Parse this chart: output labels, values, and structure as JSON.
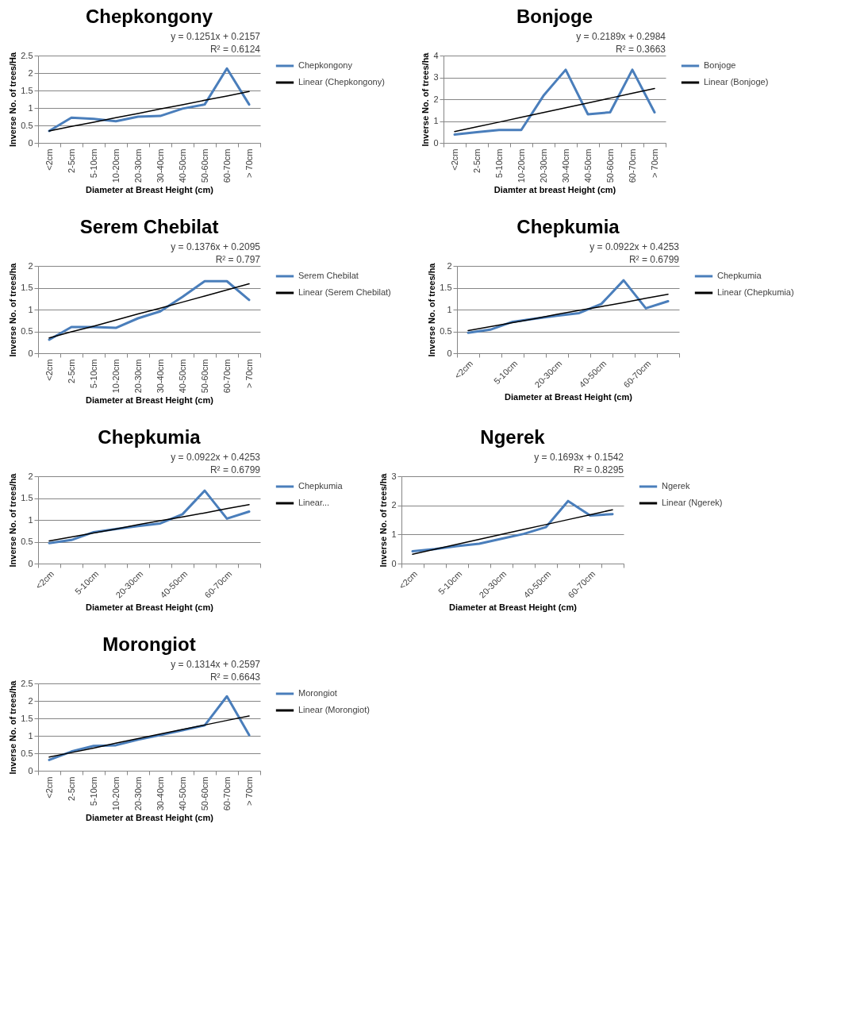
{
  "chart_data": [
    {
      "type": "line",
      "title": "Chepkongony",
      "xlabel": "Diameter at Breast Height (cm)",
      "ylabel": "Inverse No. of trees/Ha",
      "categories": [
        "<2cm",
        "2-5cm",
        "5-10cm",
        "10-20cm",
        "20-30cm",
        "30-40cm",
        "40-50cm",
        "50-60cm",
        "60-70cm",
        "> 70cm"
      ],
      "series": [
        {
          "name": "Chepkongony",
          "color": "#4a7ebb",
          "values": [
            0.34,
            0.72,
            0.69,
            0.62,
            0.75,
            0.77,
            0.98,
            1.1,
            2.13,
            1.1
          ]
        },
        {
          "name": "Linear (Chepkongony)",
          "type": "line",
          "color": "#000000",
          "values": [
            0.34,
            0.47,
            0.59,
            0.72,
            0.84,
            0.97,
            1.09,
            1.22,
            1.34,
            1.47
          ]
        }
      ],
      "ylim": [
        0,
        2.5
      ],
      "yticks": [
        0,
        0.5,
        1,
        1.5,
        2,
        2.5
      ],
      "grid": "y",
      "legend": "right",
      "annotations": [
        "y = 0.1251x + 0.2157",
        "R² = 0.6124"
      ]
    },
    {
      "type": "line",
      "title": "Bonjoge",
      "xlabel": "Diamter at breast Height (cm)",
      "ylabel": "Inverse No. of trees/ha",
      "categories": [
        "<2cm",
        "2-5cm",
        "5-10cm",
        "10-20cm",
        "20-30cm",
        "30-40cm",
        "40-50cm",
        "50-60cm",
        "60-70cm",
        "> 70cm"
      ],
      "series": [
        {
          "name": "Bonjoge",
          "color": "#4a7ebb",
          "values": [
            0.38,
            0.49,
            0.59,
            0.59,
            2.16,
            3.35,
            1.31,
            1.4,
            3.35,
            1.4
          ]
        },
        {
          "name": "Linear (Bonjoge)",
          "type": "line",
          "color": "#000000",
          "values": [
            0.52,
            0.74,
            0.95,
            1.17,
            1.39,
            1.61,
            1.83,
            2.05,
            2.27,
            2.49
          ]
        }
      ],
      "ylim": [
        0,
        4
      ],
      "yticks": [
        0,
        1,
        2,
        3,
        4
      ],
      "grid": "y",
      "legend": "right",
      "annotations": [
        "y = 0.2189x + 0.2984",
        "R² = 0.3663"
      ]
    },
    {
      "type": "line",
      "title": "Serem Chebilat",
      "xlabel": "Diameter at Breast Height (cm)",
      "ylabel": "Inverse No. of trees/ha",
      "categories": [
        "<2cm",
        "2-5cm",
        "5-10cm",
        "10-20cm",
        "20-30cm",
        "30-40cm",
        "40-50cm",
        "50-60cm",
        "60-70cm",
        "> 70cm"
      ],
      "series": [
        {
          "name": "Serem Chebilat",
          "color": "#4a7ebb",
          "values": [
            0.31,
            0.6,
            0.6,
            0.58,
            0.8,
            0.96,
            1.29,
            1.65,
            1.65,
            1.22
          ]
        },
        {
          "name": "Linear (Serem Chebilat)",
          "type": "line",
          "color": "#000000",
          "values": [
            0.35,
            0.49,
            0.62,
            0.76,
            0.9,
            1.03,
            1.17,
            1.31,
            1.45,
            1.59
          ]
        }
      ],
      "ylim": [
        0,
        2
      ],
      "yticks": [
        0,
        0.5,
        1,
        1.5,
        2
      ],
      "grid": "y",
      "legend": "right",
      "annotations": [
        "y = 0.1376x + 0.2095",
        "R² = 0.797"
      ]
    },
    {
      "type": "line",
      "title": "Chepkumia",
      "xlabel": "Diameter at Breast Height (cm)",
      "ylabel": "Inverse No. of trees/ha",
      "categories": [
        "<2cm",
        null,
        "5-10cm",
        null,
        "20-30cm",
        null,
        "40-50cm",
        null,
        "60-70cm",
        null
      ],
      "series": [
        {
          "name": "Chepkumia",
          "color": "#4a7ebb",
          "values": [
            0.47,
            0.54,
            0.72,
            0.79,
            0.86,
            0.92,
            1.13,
            1.67,
            1.03,
            1.19
          ]
        },
        {
          "name": "Linear (Chepkumia)",
          "type": "line",
          "color": "#000000",
          "values": [
            0.52,
            0.61,
            0.7,
            0.79,
            0.89,
            0.98,
            1.07,
            1.16,
            1.26,
            1.35
          ]
        }
      ],
      "ylim": [
        0,
        2
      ],
      "yticks": [
        0,
        0.5,
        1,
        1.5,
        2
      ],
      "grid": "y",
      "legend": "right",
      "annotations": [
        "y = 0.0922x + 0.4253",
        "R² = 0.6799"
      ]
    },
    {
      "type": "line",
      "title": "Chepkumia",
      "xlabel": "Diameter at Breast Height (cm)",
      "ylabel": "Inverse No. of trees/ha",
      "categories": [
        "<2cm",
        null,
        "5-10cm",
        null,
        "20-30cm",
        null,
        "40-50cm",
        null,
        "60-70cm",
        null
      ],
      "series": [
        {
          "name": "Chepkumia",
          "color": "#4a7ebb",
          "values": [
            0.47,
            0.54,
            0.72,
            0.79,
            0.86,
            0.92,
            1.13,
            1.67,
            1.03,
            1.19
          ]
        },
        {
          "name": "Linear...",
          "type": "line",
          "color": "#000000",
          "values": [
            0.52,
            0.61,
            0.7,
            0.79,
            0.89,
            0.98,
            1.07,
            1.16,
            1.26,
            1.35
          ]
        }
      ],
      "ylim": [
        0,
        2
      ],
      "yticks": [
        0,
        0.5,
        1,
        1.5,
        2
      ],
      "grid": "y",
      "legend": "right",
      "annotations": [
        "y = 0.0922x + 0.4253",
        "R² = 0.6799"
      ]
    },
    {
      "type": "line",
      "title": "Ngerek",
      "xlabel": "Diameter at Breast Height (cm)",
      "ylabel": "Inverse No. of trees/ha",
      "categories": [
        "<2cm",
        null,
        "5-10cm",
        null,
        "20-30cm",
        null,
        "40-50cm",
        null,
        "60-70cm",
        null
      ],
      "series": [
        {
          "name": "Ngerek",
          "color": "#4a7ebb",
          "values": [
            0.42,
            0.5,
            0.6,
            0.68,
            0.85,
            1.02,
            1.25,
            2.15,
            1.65,
            1.7
          ]
        },
        {
          "name": "Linear (Ngerek)",
          "type": "line",
          "color": "#000000",
          "values": [
            0.32,
            0.49,
            0.66,
            0.83,
            1.0,
            1.17,
            1.34,
            1.51,
            1.68,
            1.85
          ]
        }
      ],
      "ylim": [
        0,
        3
      ],
      "yticks": [
        0,
        1,
        2,
        3
      ],
      "grid": "y",
      "legend": "right",
      "annotations": [
        "y = 0.1693x + 0.1542",
        "R² = 0.8295"
      ]
    },
    {
      "type": "line",
      "title": "Morongiot",
      "xlabel": "Diameter at Breast Height (cm)",
      "ylabel": "Inverse No. of trees/ha",
      "categories": [
        "<2cm",
        "2-5cm",
        "5-10cm",
        "10-20cm",
        "20-30cm",
        "30-40cm",
        "40-50cm",
        "50-60cm",
        "60-70cm",
        "> 70cm"
      ],
      "series": [
        {
          "name": "Morongiot",
          "color": "#4a7ebb",
          "values": [
            0.31,
            0.55,
            0.71,
            0.73,
            0.89,
            1.02,
            1.16,
            1.3,
            2.13,
            1.02
          ]
        },
        {
          "name": "Linear (Morongiot)",
          "type": "line",
          "color": "#000000",
          "values": [
            0.39,
            0.52,
            0.65,
            0.79,
            0.92,
            1.05,
            1.18,
            1.31,
            1.44,
            1.57
          ]
        }
      ],
      "ylim": [
        0,
        2.5
      ],
      "yticks": [
        0,
        0.5,
        1,
        1.5,
        2,
        2.5
      ],
      "grid": "y",
      "legend": "right",
      "annotations": [
        "y = 0.1314x + 0.2597",
        "R² = 0.6643"
      ]
    }
  ]
}
